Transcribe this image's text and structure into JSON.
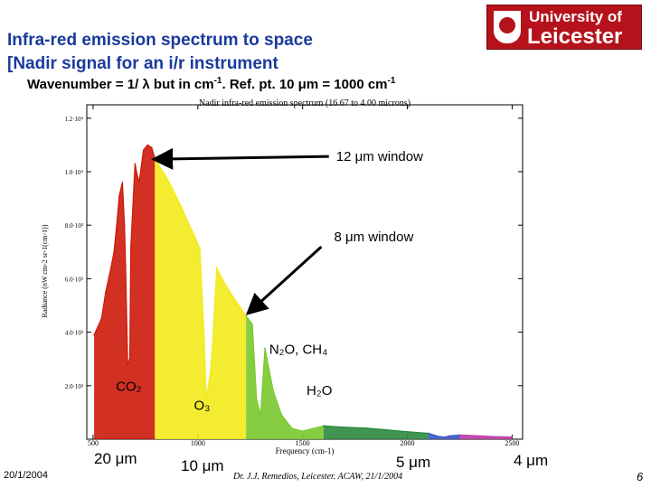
{
  "slide": {
    "title_line1": "Infra-red emission spectrum to space",
    "title_line2": "[Nadir signal for an i/r instrument",
    "subtitle_main": "Wavenumber = 1/ λ but in cm",
    "subtitle_sup1": "-1",
    "subtitle_mid": ". Ref. pt. 10 μm = 1000 cm",
    "subtitle_sup2": "-1",
    "date": "20/1/2004",
    "footer": "Dr. J.J. Remedios, Leicester. ACAW, 21/1/2004",
    "page_number": "6",
    "logo_line1": "University of",
    "logo_line2": "Leicester",
    "wavelength_labels": {
      "um20": "20 μm",
      "um10": "10 μm",
      "um5": "5 μm",
      "um4": "4 μm"
    }
  },
  "colors": {
    "title": "#1a3a9c",
    "logo": "#b5121b",
    "arrow": "#000000"
  },
  "chart_data": {
    "type": "line",
    "title": "Nadir infra-red emission spectrum (16.67 to 4.00 microns)",
    "xlabel": "Frequency (cm-1)",
    "ylabel": "Radiance (nW cm-2 sr-1(cm-1))",
    "xlim": [
      470,
      2550
    ],
    "ylim": [
      0,
      12500
    ],
    "x_ticks": [
      500,
      1000,
      1500,
      2000,
      2500
    ],
    "x_tick_labels": [
      "500",
      "1000",
      "1500",
      "2000",
      "2500"
    ],
    "y_ticks": [
      2000,
      4000,
      6000,
      8000,
      10000,
      12000
    ],
    "y_tick_labels": [
      "2.0·10³",
      "4.0·10³",
      "6.0·10³",
      "8.0·10³",
      "1.0·10⁴",
      "1.2·10⁴"
    ],
    "grid": false,
    "series": [
      {
        "color": "#cc1a0a",
        "x": [
          505,
          540,
          560,
          585,
          600,
          615,
          625,
          640,
          650,
          655,
          665,
          675,
          680,
          700,
          710,
          720,
          740,
          760,
          780,
          795
        ],
        "y": [
          3900,
          4500,
          5500,
          6400,
          7000,
          8200,
          9100,
          9600,
          8000,
          6500,
          2800,
          3000,
          7200,
          10300,
          9900,
          9600,
          10800,
          11000,
          10900,
          10500
        ]
      },
      {
        "color": "#f2ea1a",
        "x": [
          795,
          820,
          850,
          880,
          920,
          960,
          990,
          1010,
          1030,
          1040,
          1060,
          1070,
          1090,
          1130,
          1170,
          1200,
          1230
        ],
        "y": [
          10500,
          10150,
          9800,
          9350,
          8700,
          8000,
          7500,
          7100,
          3800,
          1500,
          2500,
          3500,
          6400,
          5800,
          5300,
          4950,
          4600
        ]
      },
      {
        "color": "#7ac82e",
        "x": [
          1230,
          1260,
          1280,
          1300,
          1320,
          1340,
          1360,
          1400,
          1450,
          1500,
          1550,
          1600
        ],
        "y": [
          4600,
          4300,
          1500,
          900,
          3400,
          2600,
          1800,
          900,
          400,
          300,
          400,
          500
        ]
      },
      {
        "color": "#2a8a3e",
        "x": [
          1600,
          1700,
          1800,
          1900,
          2000,
          2100
        ],
        "y": [
          500,
          450,
          420,
          350,
          280,
          220
        ]
      },
      {
        "color": "#3a58c8",
        "x": [
          2100,
          2150,
          2180,
          2200,
          2250
        ],
        "y": [
          220,
          100,
          80,
          120,
          160
        ]
      },
      {
        "color": "#c03aa8",
        "x": [
          2250,
          2300,
          2350,
          2400,
          2450,
          2500
        ],
        "y": [
          160,
          140,
          120,
          100,
          90,
          80
        ]
      }
    ],
    "annotations": [
      {
        "text": "12 μm window",
        "x": 1660,
        "y": 10400,
        "arrow_to": [
          790,
          10400
        ]
      },
      {
        "text": "8 μm window",
        "x": 1650,
        "y": 7400,
        "arrow_to": [
          1235,
          4700
        ]
      },
      {
        "text": "N₂O, CH₄",
        "x": 1480,
        "y": 3200
      },
      {
        "text": "CO₂",
        "x": 670,
        "y": 1800
      },
      {
        "text": "O₃",
        "x": 1020,
        "y": 1100
      },
      {
        "text": "H₂O",
        "x": 1580,
        "y": 1650
      }
    ]
  }
}
